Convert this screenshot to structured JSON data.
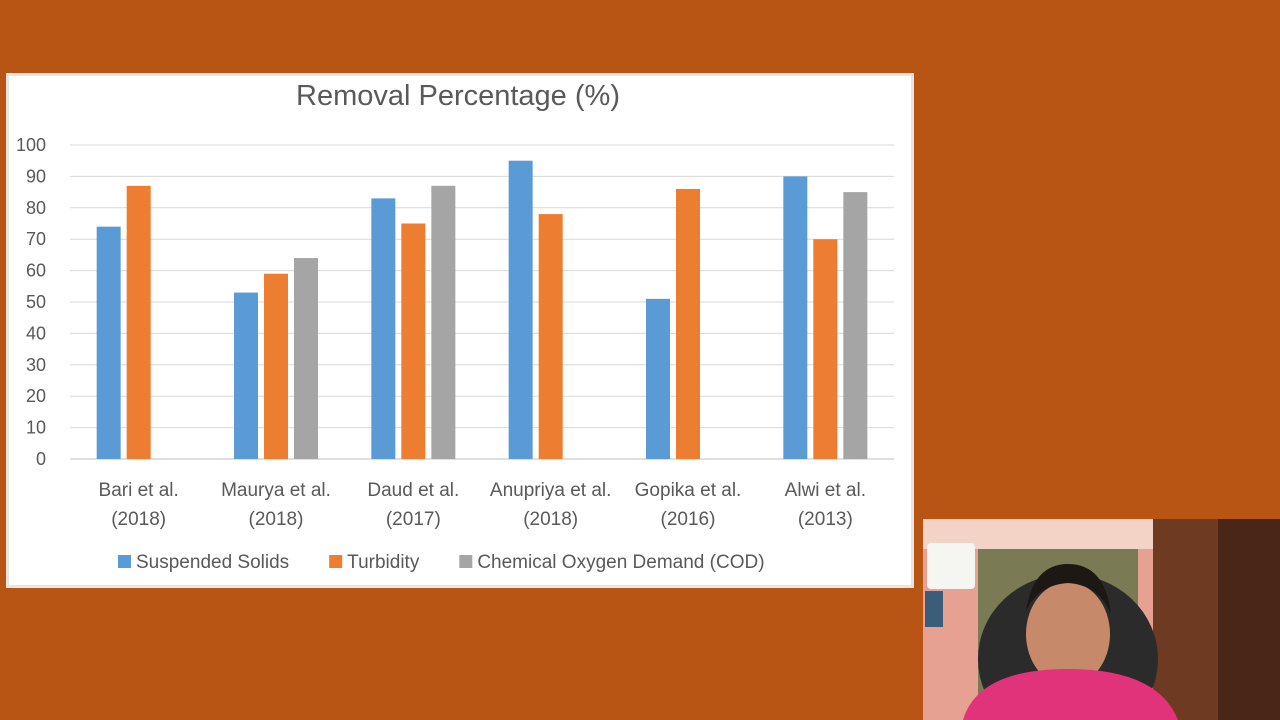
{
  "chart_data": {
    "type": "bar",
    "title": "Removal Percentage (%)",
    "xlabel": "",
    "ylabel": "",
    "ylim": [
      0,
      100
    ],
    "yticks": [
      "0",
      "10",
      "20",
      "30",
      "40",
      "50",
      "60",
      "70",
      "80",
      "90",
      "100"
    ],
    "grid": true,
    "legend_position": "bottom",
    "categories": [
      [
        "Bari et al.",
        "(2018)"
      ],
      [
        "Maurya et al.",
        "(2018)"
      ],
      [
        "Daud et al.",
        "(2017)"
      ],
      [
        "Anupriya et al.",
        "(2018)"
      ],
      [
        "Gopika et al.",
        "(2016)"
      ],
      [
        "Alwi et al.",
        "(2013)"
      ]
    ],
    "series": [
      {
        "name": "Suspended Solids",
        "color": "#5b9bd5",
        "values": [
          74,
          53,
          83,
          95,
          51,
          90
        ]
      },
      {
        "name": "Turbidity",
        "color": "#ed7d31",
        "values": [
          87,
          59,
          75,
          78,
          86,
          70
        ]
      },
      {
        "name": "Chemical Oxygen Demand (COD)",
        "color": "#a5a5a5",
        "values": [
          null,
          64,
          87,
          null,
          null,
          85
        ]
      }
    ]
  },
  "colors": {
    "background": "#b85514",
    "slide": "#ffffff",
    "text": "#595959",
    "gridline": "#d9d9d9"
  }
}
